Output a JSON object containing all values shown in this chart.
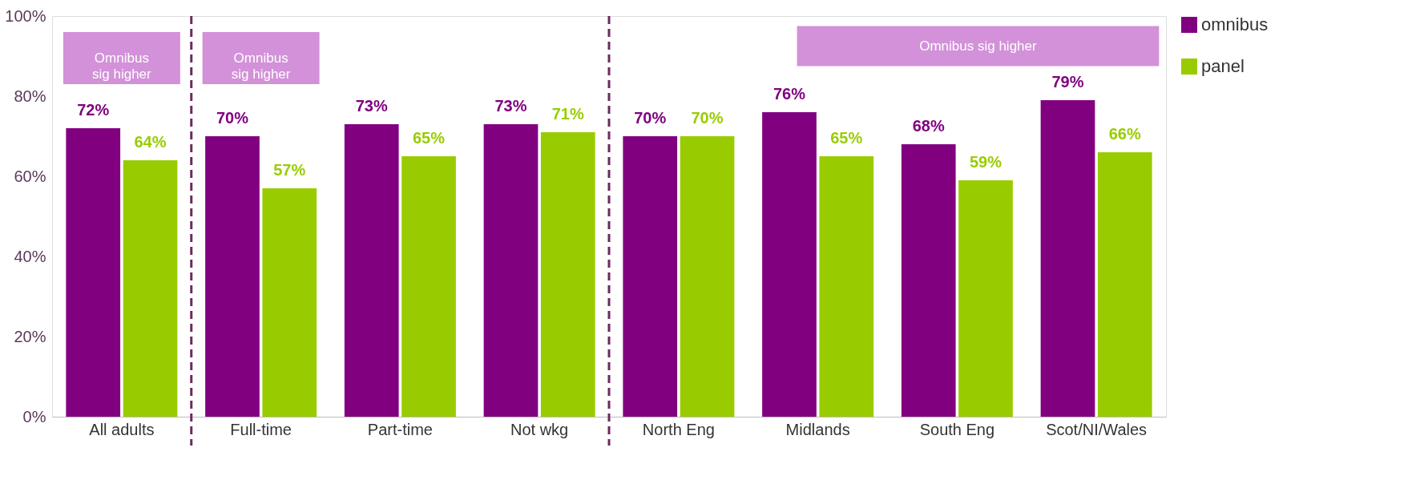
{
  "chart_data": {
    "type": "bar",
    "categories": [
      "All adults",
      "Full-time",
      "Part-time",
      "Not wkg",
      "North Eng",
      "Midlands",
      "South Eng",
      "Scot/NI/Wales"
    ],
    "series": [
      {
        "name": "omnibus",
        "color": "#800080",
        "values": [
          72,
          70,
          73,
          73,
          70,
          76,
          68,
          79
        ],
        "value_labels": [
          "72%",
          "70%",
          "73%",
          "73%",
          "70%",
          "76%",
          "68%",
          "79%"
        ]
      },
      {
        "name": "panel",
        "color": "#99cc00",
        "values": [
          64,
          57,
          65,
          71,
          70,
          65,
          59,
          66
        ],
        "value_labels": [
          "64%",
          "57%",
          "65%",
          "71%",
          "70%",
          "65%",
          "59%",
          "66%"
        ]
      }
    ],
    "ylim": [
      0,
      100
    ],
    "yticks": [
      {
        "value": 0,
        "label": "0%"
      },
      {
        "value": 20,
        "label": "20%"
      },
      {
        "value": 40,
        "label": "40%"
      },
      {
        "value": 60,
        "label": "60%"
      },
      {
        "value": 80,
        "label": "80%"
      },
      {
        "value": 100,
        "label": "100%"
      }
    ],
    "grid": false,
    "legend": "right",
    "annotations": [
      "Omnibus\nsig higher",
      "Omnibus\nsig higher",
      "Omnibus sig higher"
    ]
  }
}
